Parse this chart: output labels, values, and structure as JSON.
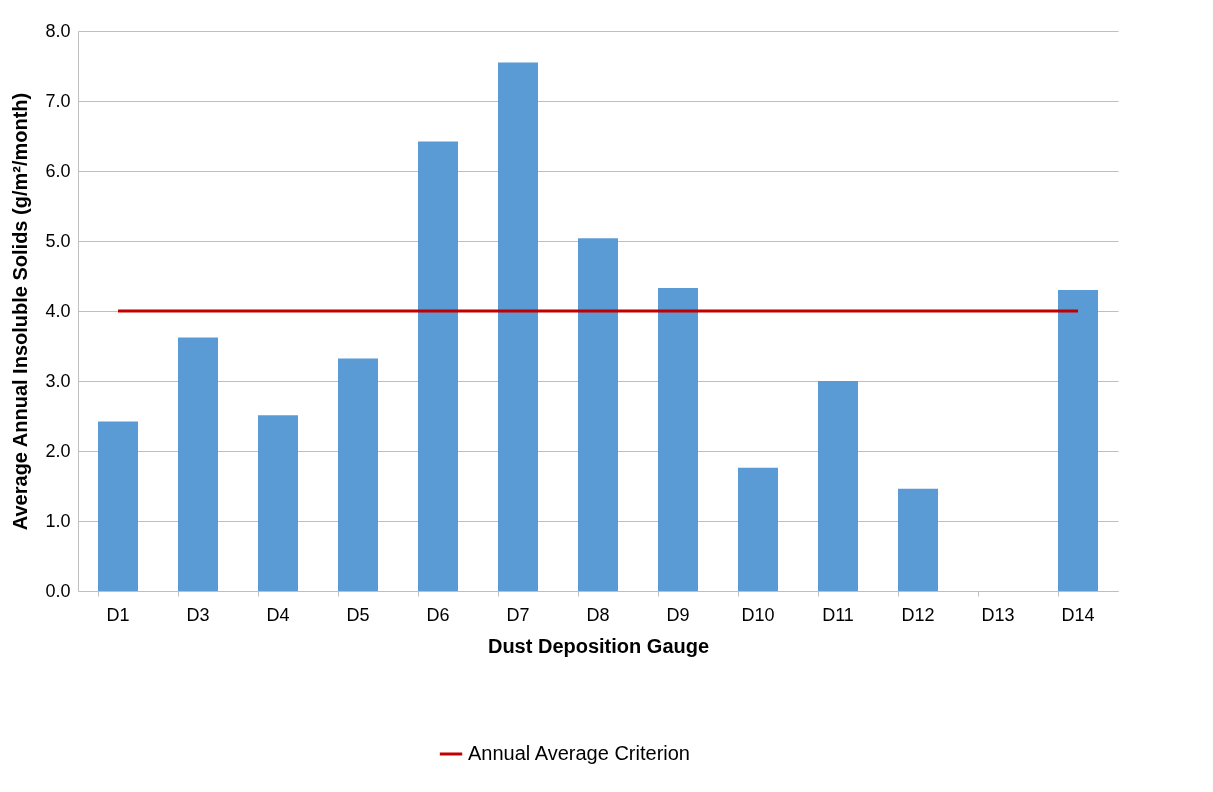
{
  "chart_data": {
    "type": "bar",
    "xlabel": "Dust Deposition Gauge",
    "ylabel": "Average Annual Insoluble Solids (g/m²/month)",
    "categories": [
      "D1",
      "D3",
      "D4",
      "D5",
      "D6",
      "D7",
      "D8",
      "D9",
      "D10",
      "D11",
      "D12",
      "D13",
      "D14"
    ],
    "series": [
      {
        "color": "#5b9bd5",
        "values": [
          2.42,
          3.62,
          2.51,
          3.32,
          6.42,
          7.55,
          5.04,
          4.33,
          1.76,
          3.0,
          1.46,
          null,
          4.3
        ]
      },
      {
        "name": "Annual Average Criterion",
        "type": "line",
        "color": "#c00000",
        "values": [
          4,
          4,
          4,
          4,
          4,
          4,
          4,
          4,
          4,
          4,
          4,
          4,
          4
        ]
      }
    ],
    "ylim": [
      0,
      8
    ],
    "yticks": [
      {
        "value": 0,
        "label": "0.0"
      },
      {
        "value": 1,
        "label": "1.0"
      },
      {
        "value": 2,
        "label": "2.0"
      },
      {
        "value": 3,
        "label": "3.0"
      },
      {
        "value": 4,
        "label": "4.0"
      },
      {
        "value": 5,
        "label": "5.0"
      },
      {
        "value": 6,
        "label": "6.0"
      },
      {
        "value": 7,
        "label": "7.0"
      },
      {
        "value": 8,
        "label": "8.0"
      }
    ],
    "grid": "y",
    "legend": "bottom"
  }
}
